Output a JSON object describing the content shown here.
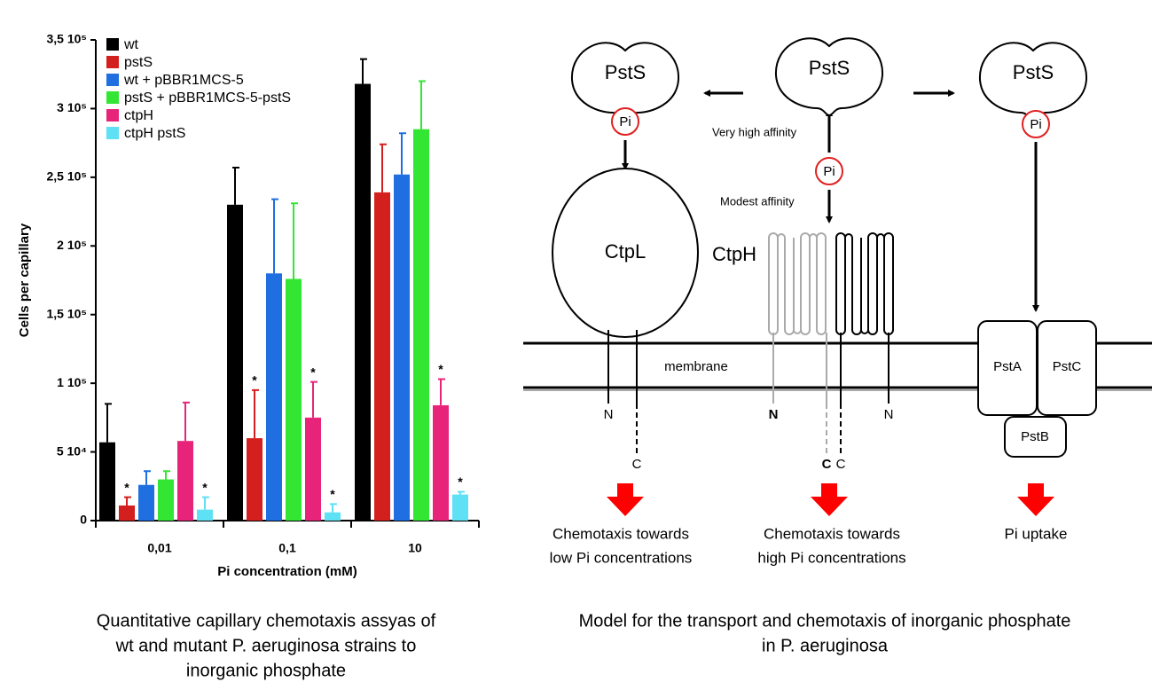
{
  "chart_data": {
    "type": "bar",
    "categories": [
      "0,01",
      "0,1",
      "10"
    ],
    "x_label": "Pi concentration (mM)",
    "y_label": "Cells per capillary",
    "ylim": [
      0,
      350000
    ],
    "yticks": [
      0,
      {
        "value": 50000,
        "label": "5 10⁴"
      },
      {
        "value": 100000,
        "label": "1 10⁵"
      },
      {
        "value": 150000,
        "label": "1,5 10⁵"
      },
      {
        "value": 200000,
        "label": "2 10⁵"
      },
      {
        "value": 250000,
        "label": "2,5 10⁵"
      },
      {
        "value": 300000,
        "label": "3 10⁵"
      },
      {
        "value": 350000,
        "label": "3,5 10⁵"
      }
    ],
    "legend": "upper left",
    "series": [
      {
        "name": "wt",
        "color": "#000000",
        "values": [
          57000,
          230000,
          318000
        ],
        "errors": [
          28000,
          27000,
          18000
        ],
        "significance": [
          null,
          null,
          null
        ]
      },
      {
        "name": "pstS",
        "color": "#d41f1f",
        "values": [
          11000,
          60000,
          239000
        ],
        "errors": [
          6000,
          35000,
          35000
        ],
        "significance": [
          "*",
          "*",
          null
        ]
      },
      {
        "name": "wt + pBBR1MCS-5",
        "color": "#1f6fe0",
        "values": [
          26000,
          180000,
          252000
        ],
        "errors": [
          10000,
          54000,
          30000
        ],
        "significance": [
          null,
          null,
          null
        ]
      },
      {
        "name": "pstS + pBBR1MCS-5-pstS",
        "color": "#33e633",
        "values": [
          30000,
          176000,
          285000
        ],
        "errors": [
          6000,
          55000,
          35000
        ],
        "significance": [
          null,
          null,
          null
        ]
      },
      {
        "name": "ctpH",
        "color": "#e8247a",
        "values": [
          58000,
          75000,
          84000
        ],
        "errors": [
          28000,
          26000,
          19000
        ],
        "significance": [
          null,
          "*",
          "*"
        ]
      },
      {
        "name": "ctpH pstS",
        "color": "#5ee0f5",
        "values": [
          8000,
          6000,
          19000
        ],
        "errors": [
          9000,
          6000,
          2000
        ],
        "significance": [
          "*",
          "*",
          "*"
        ]
      }
    ],
    "caption": [
      "Quantitative capillary chemotaxis assyas of",
      "wt and mutant P. aeruginosa strains to",
      "inorganic phosphate"
    ]
  },
  "diagram": {
    "pstS": [
      "PstS",
      "PstS",
      "PstS"
    ],
    "pi": [
      "Pi",
      "Pi",
      "Pi"
    ],
    "affinity": [
      "Very high affinity",
      "Modest affinity"
    ],
    "ctpL": "CtpL",
    "ctpH": "CtpH",
    "membrane": "membrane",
    "termini_ctpL": [
      "N",
      "C"
    ],
    "termini_ctpH_grey": [
      "N",
      "C"
    ],
    "termini_ctpH_black": [
      "C",
      "N"
    ],
    "pst": [
      "PstA",
      "PstC",
      "PstB"
    ],
    "outcomes": [
      [
        "Chemotaxis towards",
        "low Pi concentrations"
      ],
      [
        "Chemotaxis towards",
        "high Pi concentrations"
      ],
      [
        "Pi uptake"
      ]
    ],
    "caption": [
      "Model for the transport and chemotaxis of inorganic phosphate",
      "in P. aeruginosa"
    ]
  }
}
